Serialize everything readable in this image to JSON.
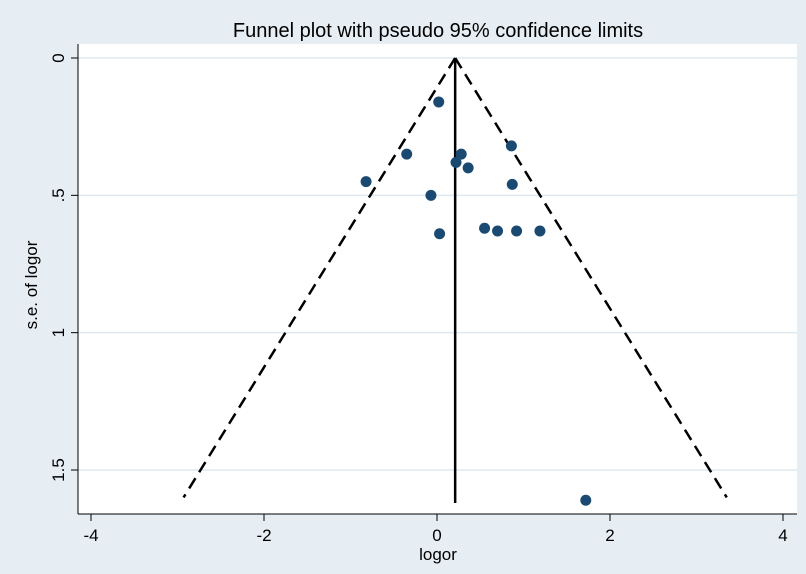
{
  "chart_data": {
    "type": "scatter",
    "title": "Funnel plot with pseudo 95% confidence limits",
    "xlabel": "logor",
    "ylabel": "s.e. of logor",
    "xlim": [
      -4.05,
      4.05
    ],
    "ylim": [
      1.65,
      0.0
    ],
    "y_reversed": true,
    "xticks": [
      -4,
      -2,
      0,
      2,
      4
    ],
    "xtick_labels": [
      "-4",
      "-2",
      "0",
      "2",
      "4"
    ],
    "yticks": [
      0,
      0.5,
      1,
      1.5
    ],
    "ytick_labels": [
      "0",
      ".5",
      "1",
      "1.5"
    ],
    "grid": "horizontal",
    "pooled_estimate": 0.21,
    "vertical_line": {
      "x": 0.21,
      "y_from": 0.0,
      "y_to": 1.62
    },
    "funnel_left": [
      [
        0.21,
        0.0
      ],
      [
        -2.93,
        1.6
      ]
    ],
    "funnel_right": [
      [
        0.21,
        0.0
      ],
      [
        3.35,
        1.6
      ]
    ],
    "points": [
      {
        "x": 0.02,
        "y": 0.16
      },
      {
        "x": 0.86,
        "y": 0.32
      },
      {
        "x": -0.35,
        "y": 0.35
      },
      {
        "x": 0.28,
        "y": 0.35
      },
      {
        "x": 0.22,
        "y": 0.38
      },
      {
        "x": 0.36,
        "y": 0.4
      },
      {
        "x": -0.82,
        "y": 0.45
      },
      {
        "x": 0.87,
        "y": 0.46
      },
      {
        "x": -0.07,
        "y": 0.5
      },
      {
        "x": 0.55,
        "y": 0.62
      },
      {
        "x": 0.7,
        "y": 0.63
      },
      {
        "x": 0.92,
        "y": 0.63
      },
      {
        "x": 1.19,
        "y": 0.63
      },
      {
        "x": 0.03,
        "y": 0.64
      },
      {
        "x": 1.72,
        "y": 1.61
      }
    ],
    "colors": {
      "marker": "#1a4a72",
      "lines": "#000000",
      "grid": "#dfe9ee",
      "plot_bg": "#ffffff",
      "outer_bg": "#e7eef3"
    }
  }
}
